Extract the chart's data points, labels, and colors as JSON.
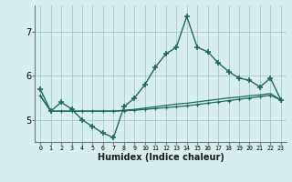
{
  "x": [
    0,
    1,
    2,
    3,
    4,
    5,
    6,
    7,
    8,
    9,
    10,
    11,
    12,
    13,
    14,
    15,
    16,
    17,
    18,
    19,
    20,
    21,
    22,
    23
  ],
  "y_main": [
    5.7,
    5.2,
    5.4,
    5.25,
    5.0,
    4.85,
    4.7,
    4.6,
    5.3,
    5.5,
    5.8,
    6.2,
    6.5,
    6.65,
    7.35,
    6.65,
    6.55,
    6.3,
    6.1,
    5.95,
    5.9,
    5.75,
    5.95,
    5.45
  ],
  "y_trend1": [
    5.55,
    5.2,
    5.2,
    5.2,
    5.2,
    5.2,
    5.2,
    5.2,
    5.21,
    5.22,
    5.24,
    5.26,
    5.28,
    5.3,
    5.32,
    5.35,
    5.38,
    5.41,
    5.44,
    5.47,
    5.5,
    5.53,
    5.56,
    5.45
  ],
  "y_trend2": [
    5.55,
    5.2,
    5.2,
    5.2,
    5.2,
    5.2,
    5.2,
    5.2,
    5.22,
    5.24,
    5.27,
    5.3,
    5.33,
    5.36,
    5.38,
    5.41,
    5.44,
    5.47,
    5.5,
    5.52,
    5.55,
    5.57,
    5.6,
    5.45
  ],
  "bg_color": "#d8eeee",
  "grid_color": "#aacece",
  "line_color": "#1a6b5a",
  "xlabel": "Humidex (Indice chaleur)",
  "ylim": [
    4.5,
    7.6
  ],
  "xlim": [
    -0.5,
    23.5
  ],
  "yticks": [
    5,
    6,
    7
  ],
  "xticks": [
    0,
    1,
    2,
    3,
    4,
    5,
    6,
    7,
    8,
    9,
    10,
    11,
    12,
    13,
    14,
    15,
    16,
    17,
    18,
    19,
    20,
    21,
    22,
    23
  ]
}
